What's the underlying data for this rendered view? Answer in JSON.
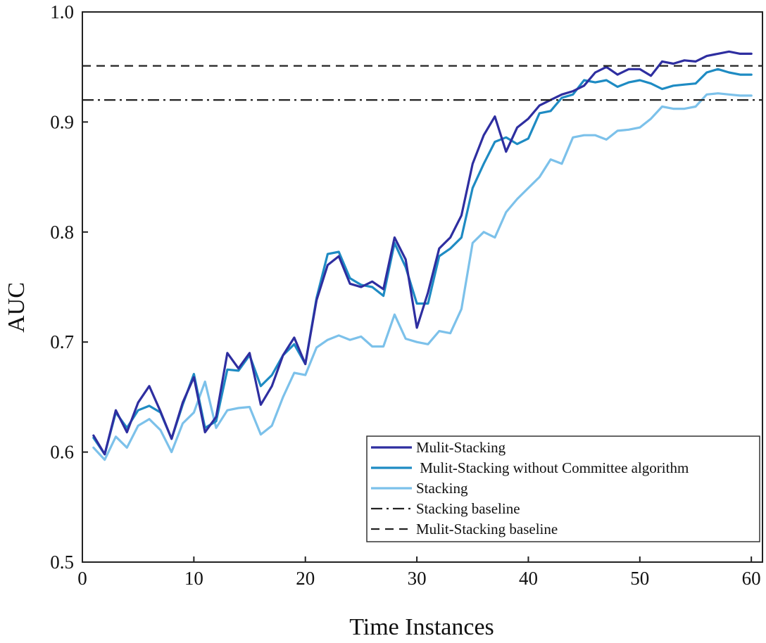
{
  "chart_data": {
    "type": "line",
    "xlabel": "Time Instances",
    "ylabel": "AUC",
    "xlim": [
      0,
      61
    ],
    "ylim": [
      0.5,
      1.0
    ],
    "xticks": [
      0,
      10,
      20,
      30,
      40,
      50,
      60
    ],
    "yticks": [
      0.5,
      0.6,
      0.7,
      0.8,
      0.9,
      1.0
    ],
    "xtick_labels": [
      "0",
      "10",
      "20",
      "30",
      "40",
      "50",
      "60"
    ],
    "ytick_labels": [
      "0.5",
      "0.6",
      "0.7",
      "0.8",
      "0.9",
      "1.0"
    ],
    "grid": false,
    "legend_position": "bottom-right",
    "x": [
      1,
      2,
      3,
      4,
      5,
      6,
      7,
      8,
      9,
      10,
      11,
      12,
      13,
      14,
      15,
      16,
      17,
      18,
      19,
      20,
      21,
      22,
      23,
      24,
      25,
      26,
      27,
      28,
      29,
      30,
      31,
      32,
      33,
      34,
      35,
      36,
      37,
      38,
      39,
      40,
      41,
      42,
      43,
      44,
      45,
      46,
      47,
      48,
      49,
      50,
      51,
      52,
      53,
      54,
      55,
      56,
      57,
      58,
      59,
      60
    ],
    "series": [
      {
        "name": "Mulit-Stacking",
        "color": "#2e2ea0",
        "style": "solid",
        "values": [
          0.615,
          0.598,
          0.638,
          0.618,
          0.645,
          0.66,
          0.637,
          0.612,
          0.645,
          0.668,
          0.618,
          0.632,
          0.69,
          0.676,
          0.69,
          0.643,
          0.66,
          0.688,
          0.704,
          0.68,
          0.738,
          0.77,
          0.778,
          0.753,
          0.75,
          0.755,
          0.748,
          0.795,
          0.775,
          0.713,
          0.745,
          0.785,
          0.795,
          0.815,
          0.862,
          0.888,
          0.905,
          0.873,
          0.895,
          0.903,
          0.915,
          0.92,
          0.925,
          0.928,
          0.933,
          0.945,
          0.95,
          0.943,
          0.948,
          0.948,
          0.942,
          0.955,
          0.953,
          0.956,
          0.955,
          0.96,
          0.962,
          0.964,
          0.962,
          0.962
        ]
      },
      {
        "name": "Mulit-Stacking without Committee algorithm",
        "color": "#1e8bc3",
        "style": "solid",
        "values": [
          0.613,
          0.598,
          0.636,
          0.622,
          0.638,
          0.642,
          0.636,
          0.612,
          0.643,
          0.671,
          0.622,
          0.628,
          0.675,
          0.674,
          0.688,
          0.66,
          0.67,
          0.688,
          0.698,
          0.68,
          0.74,
          0.78,
          0.782,
          0.758,
          0.752,
          0.75,
          0.742,
          0.79,
          0.768,
          0.735,
          0.735,
          0.778,
          0.785,
          0.795,
          0.84,
          0.862,
          0.882,
          0.886,
          0.88,
          0.885,
          0.908,
          0.91,
          0.922,
          0.925,
          0.938,
          0.936,
          0.938,
          0.932,
          0.936,
          0.938,
          0.935,
          0.93,
          0.933,
          0.934,
          0.935,
          0.945,
          0.948,
          0.945,
          0.943,
          0.943
        ]
      },
      {
        "name": "Stacking",
        "color": "#7cc1ea",
        "style": "solid",
        "values": [
          0.604,
          0.593,
          0.614,
          0.604,
          0.624,
          0.63,
          0.62,
          0.6,
          0.626,
          0.636,
          0.664,
          0.622,
          0.638,
          0.64,
          0.641,
          0.616,
          0.624,
          0.65,
          0.672,
          0.67,
          0.695,
          0.702,
          0.706,
          0.702,
          0.705,
          0.696,
          0.696,
          0.725,
          0.703,
          0.7,
          0.698,
          0.71,
          0.708,
          0.73,
          0.79,
          0.8,
          0.795,
          0.818,
          0.83,
          0.84,
          0.85,
          0.866,
          0.862,
          0.886,
          0.888,
          0.888,
          0.884,
          0.892,
          0.893,
          0.895,
          0.903,
          0.914,
          0.912,
          0.912,
          0.914,
          0.925,
          0.926,
          0.925,
          0.924,
          0.924
        ]
      }
    ],
    "reference_lines": [
      {
        "name": "Stacking baseline",
        "y": 0.92,
        "style": "dashdot",
        "color": "#222222"
      },
      {
        "name": "Mulit-Stacking baseline",
        "y": 0.951,
        "style": "dashed",
        "color": "#222222"
      }
    ],
    "legend": [
      {
        "label": "Mulit-Stacking",
        "color": "#2e2ea0",
        "style": "solid"
      },
      {
        "label": " Mulit-Stacking without Committee algorithm",
        "color": "#1e8bc3",
        "style": "solid"
      },
      {
        "label": "Stacking",
        "color": "#7cc1ea",
        "style": "solid"
      },
      {
        "label": "Stacking baseline",
        "color": "#222222",
        "style": "dashdot"
      },
      {
        "label": "Mulit-Stacking baseline",
        "color": "#222222",
        "style": "dashed"
      }
    ]
  }
}
